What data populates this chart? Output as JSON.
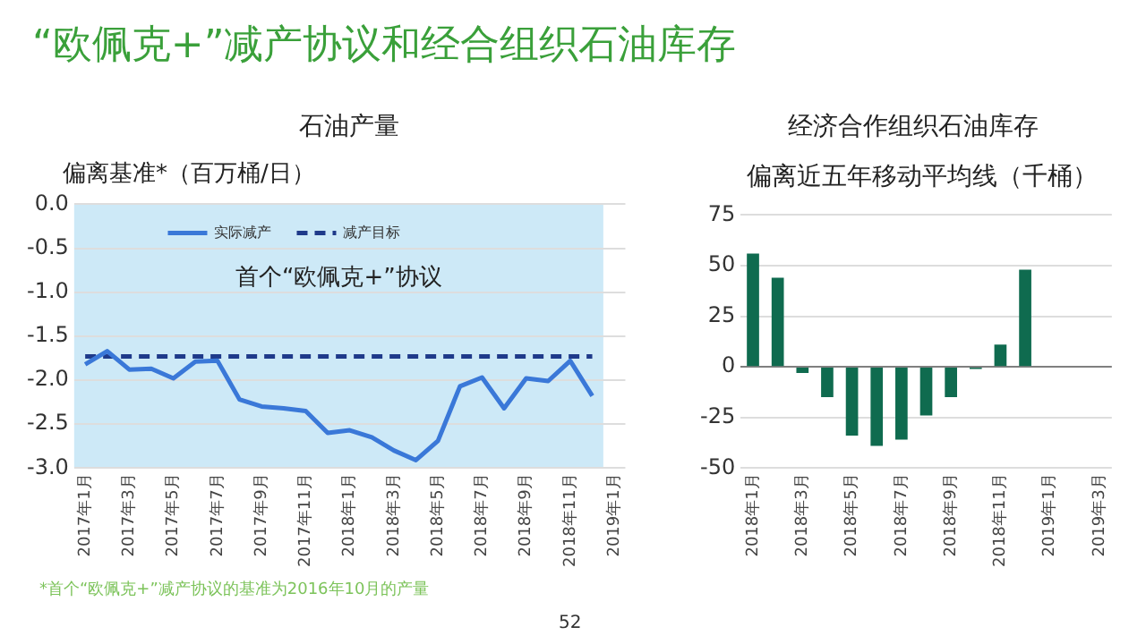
{
  "chart_data": [
    {
      "type": "line",
      "title": "“欧佩克+”减产协议和经合组织石油库存",
      "subtitle": "石油产量",
      "ylabel": "偏离基准*（百万桶/日）",
      "categories": [
        "2017年1月",
        null,
        "2017年3月",
        null,
        "2017年5月",
        null,
        "2017年7月",
        null,
        "2017年9月",
        null,
        "2017年11月",
        null,
        "2018年1月",
        null,
        "2018年3月",
        null,
        "2018年5月",
        null,
        "2018年7月",
        null,
        "2018年9月",
        null,
        "2018年11月",
        null,
        "2019年1月"
      ],
      "series": [
        {
          "name": "实际减产",
          "color": "#3a78d8",
          "values": [
            -1.82,
            -1.67,
            -1.88,
            -1.87,
            -1.98,
            -1.79,
            -1.78,
            -2.22,
            -2.3,
            -2.32,
            -2.35,
            -2.6,
            -2.57,
            -2.65,
            -2.8,
            -2.91,
            -2.69,
            -2.07,
            -1.97,
            -2.32,
            -1.98,
            -2.01,
            -1.78,
            -2.18,
            null
          ]
        },
        {
          "name": "减产目标",
          "color": "#1f3a8a",
          "line_style": "dashed",
          "values": [
            -1.73,
            -1.73,
            -1.73,
            -1.73,
            -1.73,
            -1.73,
            -1.73,
            -1.73,
            -1.73,
            -1.73,
            -1.73,
            -1.73,
            -1.73,
            -1.73,
            -1.73,
            -1.73,
            -1.73,
            -1.73,
            -1.73,
            -1.73,
            -1.73,
            -1.73,
            -1.73,
            -1.73,
            null
          ]
        }
      ],
      "ylim": [
        -3,
        0
      ],
      "yticks": [
        {
          "value": 0,
          "label": "0.0"
        },
        -0.5,
        {
          "value": -1,
          "label": "-1.0"
        },
        -1.5,
        {
          "value": -2,
          "label": "-2.0"
        },
        -2.5,
        {
          "value": -3,
          "label": "-3.0"
        }
      ],
      "bands": [
        {
          "axis": "x",
          "from": "2017年1月",
          "to": "2019年1月",
          "label": "首个“欧佩克+”协议",
          "color": "#cde9f7"
        }
      ],
      "grid": "y",
      "legend": "top left",
      "marker": "none",
      "annotations": [
        "*首个“欧佩克+”减产协议的基准为2016年10月的产量",
        "52"
      ]
    },
    {
      "type": "bar",
      "subtitle": "经济合作组织石油库存",
      "ylabel": "偏离近五年移动平均线（千桶）",
      "categories": [
        "2018年1月",
        null,
        "2018年3月",
        null,
        "2018年5月",
        null,
        "2018年7月",
        null,
        "2018年9月",
        null,
        "2018年11月",
        null,
        "2019年1月",
        null,
        "2019年3月"
      ],
      "values": [
        56,
        44,
        -3,
        -15,
        -34,
        -39,
        -36,
        -24,
        -15,
        -1,
        11,
        48,
        null,
        null,
        null
      ],
      "color": "#0f6b4f",
      "ylim": [
        -50,
        75
      ],
      "yticks": [
        -50,
        -25,
        0,
        25,
        50,
        75
      ],
      "grid": "y"
    }
  ]
}
